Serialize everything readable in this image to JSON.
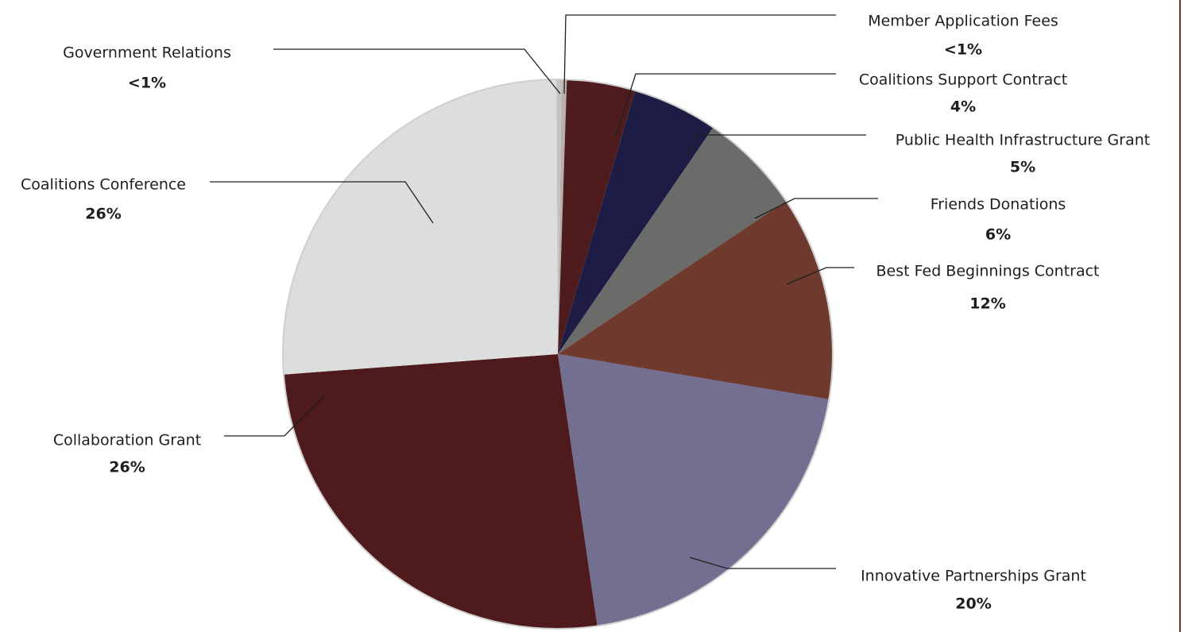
{
  "chart_data": {
    "type": "pie",
    "slices": [
      {
        "label": "Member Application Fees",
        "value_label": "<1%",
        "value": 0.3,
        "color": "#b8b0ae"
      },
      {
        "label": "Coalitions Support Contract",
        "value_label": "4%",
        "value": 4,
        "color": "#4f1c1e"
      },
      {
        "label": "Public Health Infrastructure Grant",
        "value_label": "5%",
        "value": 5,
        "color": "#1c1c44"
      },
      {
        "label": "Friends Donations",
        "value_label": "6%",
        "value": 6,
        "color": "#6b6b69"
      },
      {
        "label": "Best Fed Beginnings Contract",
        "value_label": "12%",
        "value": 12,
        "color": "#6e3a2e"
      },
      {
        "label": "Innovative Partnerships Grant",
        "value_label": "20%",
        "value": 20,
        "color": "#726f91"
      },
      {
        "label": "Collaboration Grant",
        "value_label": "26%",
        "value": 26,
        "color": "#4e1a1c"
      },
      {
        "label": "Coalitions Conference",
        "value_label": "26%",
        "value": 26,
        "color": "#dcdddd"
      },
      {
        "label": "Government Relations",
        "value_label": "<1%",
        "value": 0.3,
        "color": "#c7c2be"
      }
    ]
  }
}
